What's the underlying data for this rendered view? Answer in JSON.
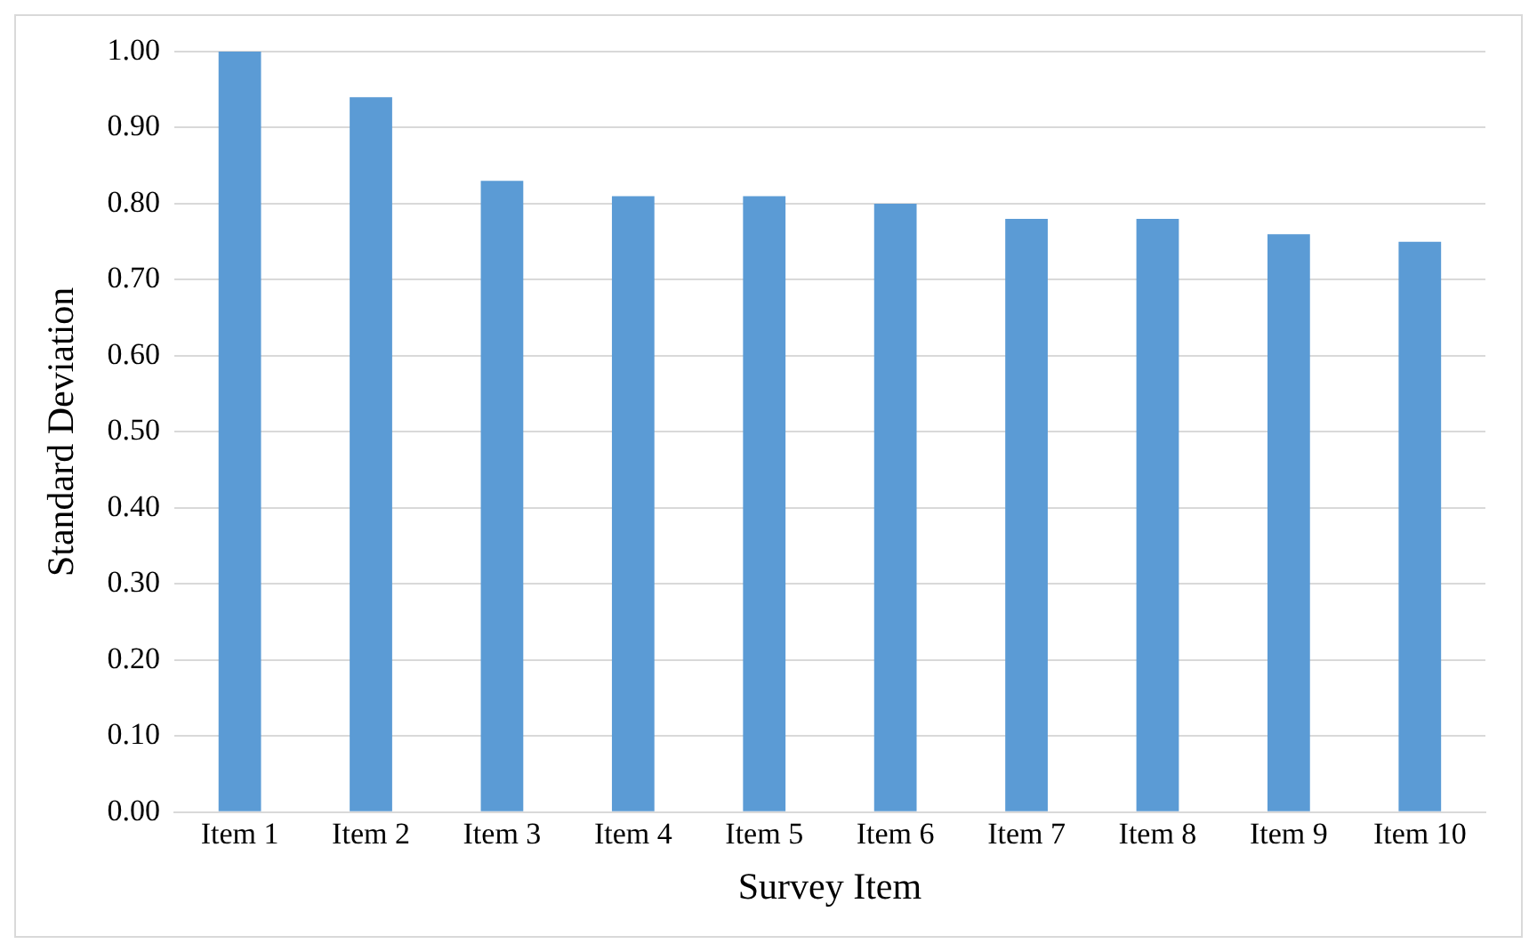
{
  "chart_data": {
    "type": "bar",
    "xlabel": "Survey Item",
    "ylabel": "Standard Deviation",
    "categories": [
      "Item 1",
      "Item 2",
      "Item 3",
      "Item 4",
      "Item 5",
      "Item 6",
      "Item 7",
      "Item 8",
      "Item 9",
      "Item 10"
    ],
    "values": [
      1.0,
      0.94,
      0.83,
      0.81,
      0.81,
      0.8,
      0.78,
      0.78,
      0.76,
      0.75
    ],
    "color": "#5b9bd5",
    "ylim": [
      0,
      1
    ],
    "yticks": [
      {
        "value": 0,
        "label": "0.00"
      },
      {
        "value": 0.1,
        "label": "0.10"
      },
      {
        "value": 0.2,
        "label": "0.20"
      },
      {
        "value": 0.3,
        "label": "0.30"
      },
      {
        "value": 0.4,
        "label": "0.40"
      },
      {
        "value": 0.5,
        "label": "0.50"
      },
      {
        "value": 0.6,
        "label": "0.60"
      },
      {
        "value": 0.7,
        "label": "0.70"
      },
      {
        "value": 0.8,
        "label": "0.80"
      },
      {
        "value": 0.9,
        "label": "0.90"
      },
      {
        "value": 1,
        "label": "1.00"
      }
    ],
    "grid": "y",
    "legend": false
  }
}
